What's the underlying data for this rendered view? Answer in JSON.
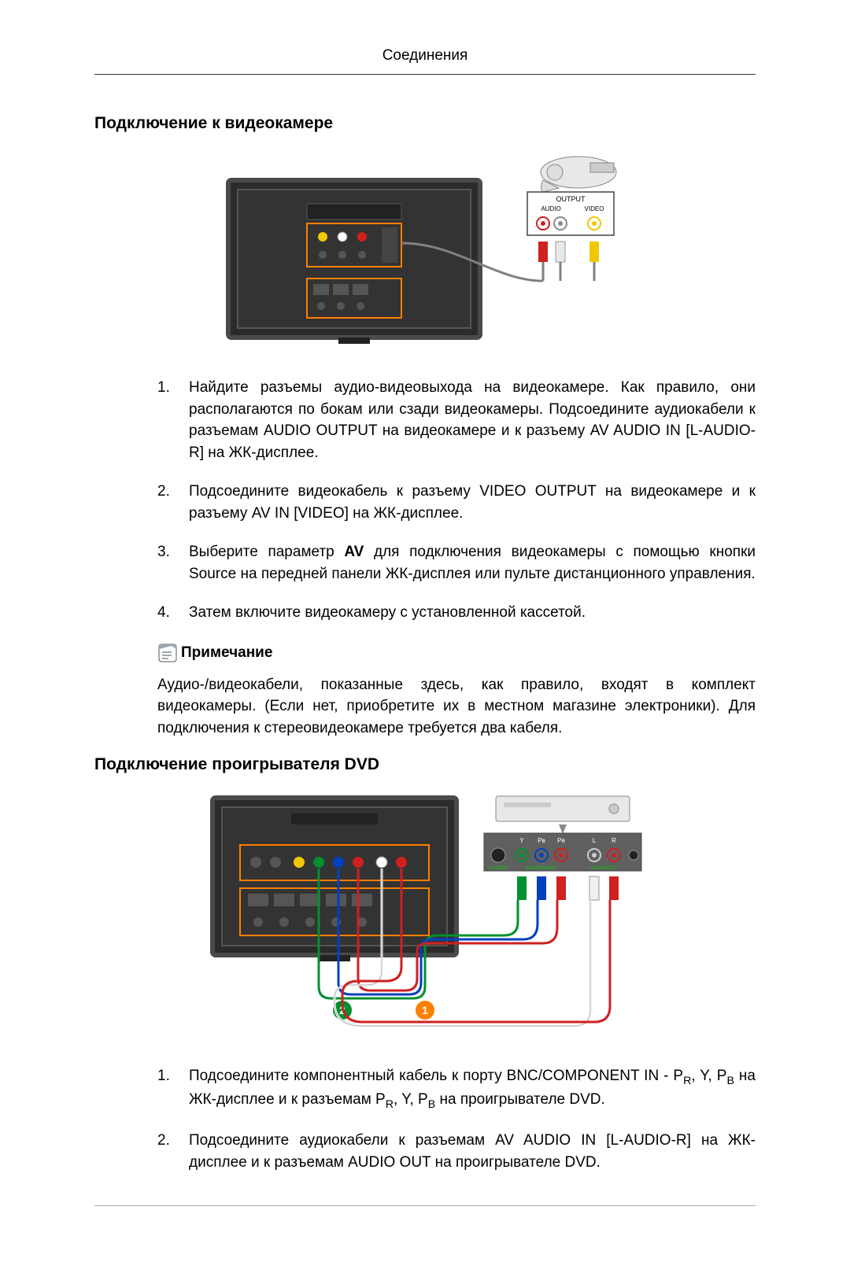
{
  "header": "Соединения",
  "section1": {
    "title": "Подключение к видеокамере",
    "figure": {
      "tv": {
        "body_color": "#2b2b2b",
        "border_color": "#4a4a4a",
        "highlight_color": "#ff7f00",
        "port_yellow": "#f0c800",
        "port_white": "#ffffff",
        "port_red": "#d02020"
      },
      "camcorder": {
        "body_color": "#e8e8e8",
        "outline_color": "#888888",
        "label_output": "OUTPUT",
        "label_audio": "AUDIO",
        "label_video": "VIDEO",
        "jack_red": "#d02020",
        "jack_white": "#ffffff",
        "jack_yellow": "#f0c800",
        "panel_border": "#444444"
      },
      "cable_color": "#808080"
    },
    "steps": [
      "Найдите разъемы аудио-видеовыхода на видеокамере. Как правило, они располагаются по бокам или сзади видеокамеры. Подсоедините аудиокабели к разъемам AUDIO OUTPUT на видеокамере и к разъему AV AUDIO IN [L-AUDIO-R] на ЖК-дисплее.",
      "Подсоедините видеокабель к разъему VIDEO OUTPUT на видеокамере и к разъему AV IN [VIDEO] на ЖК-дисплее.",
      "Выберите параметр AV для подключения видеокамеры с помощью кнопки Source на передней панели ЖК-дисплея или пульте дистанционного управления.",
      "Затем включите видеокамеру с установленной кассетой."
    ],
    "step3_bold_word": "AV",
    "note": {
      "title": "Примечание",
      "body": "Аудио-/видеокабели, показанные здесь, как правило, входят в комплект видеокамеры. (Если нет, приобретите их в местном магазине электроники). Для подключения к стереовидеокамере требуется два кабеля."
    }
  },
  "section2": {
    "title": "Подключение проигрывателя DVD",
    "figure": {
      "tv": {
        "body_color": "#2b2b2b",
        "border_color": "#4a4a4a",
        "highlight_color": "#ff7f00",
        "component_green": "#009030",
        "component_blue": "#0040c0",
        "component_red": "#d02020",
        "audio_white": "#ffffff",
        "audio_red": "#d02020"
      },
      "dvd": {
        "body_color": "#e8e8e8",
        "outline_color": "#888888",
        "panel_bg": "#606060",
        "label_y": "Y",
        "label_pb": "Pʙ",
        "label_pr": "Pʀ",
        "label_l": "L",
        "label_r": "R",
        "label_svideo": "S-VIDEO",
        "label_component": "COMPONENT",
        "label_audioout": "AUDIO OUT",
        "jack_green": "#009030",
        "jack_blue": "#0040c0",
        "jack_red": "#d02020",
        "jack_white": "#ffffff"
      },
      "callout1": {
        "num": "1",
        "bg": "#ff7f00",
        "fg": "#ffffff"
      },
      "callout2": {
        "num": "2",
        "bg": "#009030",
        "fg": "#ffffff"
      },
      "cable_green": "#009030",
      "cable_blue": "#0040c0",
      "cable_red": "#d02020",
      "cable_white": "#f0f0f0",
      "cable_red2": "#d02020"
    },
    "steps_html": [
      "Подсоедините компонентный кабель к порту BNC/COMPONENT IN - P<sub>R</sub>, Y, P<sub>B</sub> на ЖК-дисплее и к разъемам P<sub>R</sub>, Y, P<sub>B</sub> на проигрывателе DVD.",
      "Подсоедините аудиокабели к разъемам AV AUDIO IN [L-AUDIO-R] на ЖК-дисплее и к разъемам AUDIO OUT на проигрывателе DVD."
    ]
  },
  "note_icon": {
    "bg": "#ffffff",
    "stroke": "#555555",
    "tab": "#9aa6b2",
    "line": "#7b8a9a"
  }
}
